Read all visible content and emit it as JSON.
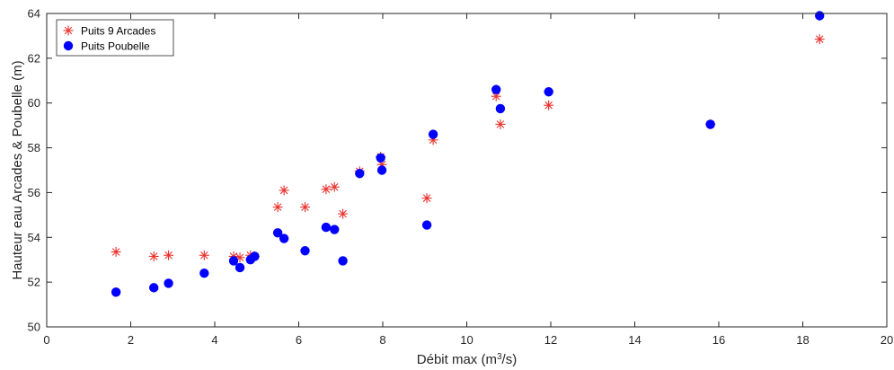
{
  "chart_data": {
    "type": "scatter",
    "title": "",
    "xlabel_prefix": "Débit max (m",
    "xlabel_sup": "3",
    "xlabel_suffix": "/s)",
    "ylabel": "Hauteur eau Arcades & Poubelle (m)",
    "xlim": [
      0,
      20
    ],
    "ylim": [
      50,
      64
    ],
    "xticks": [
      0,
      2,
      4,
      6,
      8,
      10,
      12,
      14,
      16,
      18,
      20
    ],
    "yticks": [
      50,
      52,
      54,
      56,
      58,
      60,
      62,
      64
    ],
    "grid": false,
    "legend_position": "top-left",
    "series": [
      {
        "name": "Puits 9 Arcades",
        "marker": "asterisk",
        "color": "#e8322d",
        "x": [
          1.65,
          2.55,
          2.9,
          3.75,
          4.45,
          4.6,
          4.85,
          4.95,
          5.5,
          5.65,
          6.15,
          6.65,
          6.85,
          7.05,
          7.45,
          7.95,
          7.98,
          9.05,
          9.2,
          10.7,
          10.8,
          11.95,
          15.8,
          18.4
        ],
        "y": [
          53.35,
          53.15,
          53.2,
          53.2,
          53.15,
          53.1,
          53.2,
          53.15,
          55.35,
          56.1,
          55.35,
          56.15,
          56.25,
          55.05,
          56.95,
          57.6,
          57.25,
          55.75,
          58.35,
          60.3,
          59.05,
          59.9,
          59.05,
          62.85
        ]
      },
      {
        "name": "Puits Poubelle",
        "marker": "circle",
        "color": "#0000ff",
        "x": [
          1.65,
          2.55,
          2.9,
          3.75,
          4.45,
          4.6,
          4.85,
          4.95,
          5.5,
          5.65,
          6.15,
          6.65,
          6.85,
          7.05,
          7.45,
          7.95,
          7.98,
          9.05,
          9.2,
          10.7,
          10.8,
          11.95,
          15.8,
          18.4
        ],
        "y": [
          51.55,
          51.75,
          51.95,
          52.4,
          52.95,
          52.65,
          53.0,
          53.15,
          54.2,
          53.95,
          53.4,
          54.45,
          54.35,
          52.95,
          56.85,
          57.55,
          57.0,
          54.55,
          58.6,
          60.6,
          59.75,
          60.5,
          59.05,
          63.9
        ]
      }
    ]
  }
}
